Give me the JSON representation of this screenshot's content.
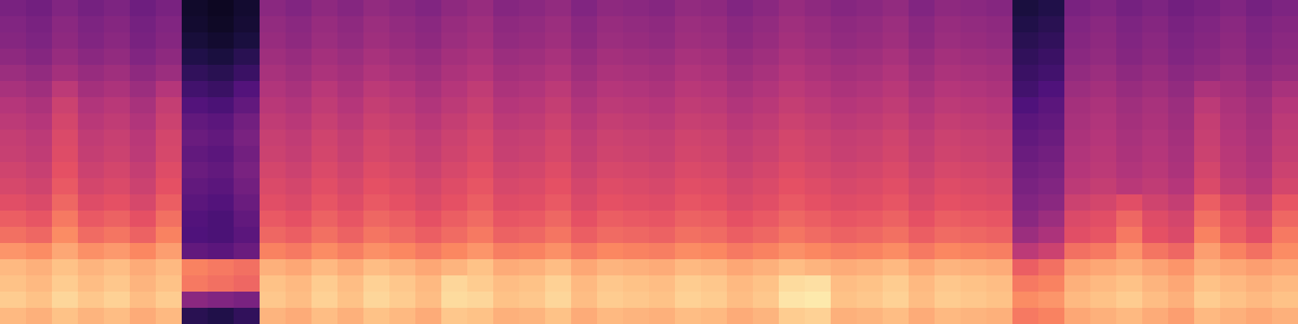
{
  "chart_data": {
    "type": "heatmap",
    "tick_labels": false,
    "zlim": [
      0,
      100
    ],
    "cells": [
      [
        36,
        34,
        38,
        35,
        37,
        33,
        36,
        8,
        6,
        9,
        40,
        38,
        41,
        39,
        42,
        40,
        38,
        41,
        43,
        39,
        40,
        42,
        38,
        41,
        40,
        39,
        42,
        41,
        38,
        40,
        43,
        41,
        39,
        40,
        42,
        38,
        41,
        40,
        39,
        12,
        14,
        36,
        38,
        35,
        37,
        34,
        36,
        38,
        35,
        37
      ],
      [
        38,
        36,
        40,
        37,
        39,
        35,
        38,
        9,
        7,
        10,
        42,
        40,
        43,
        41,
        44,
        42,
        40,
        43,
        45,
        41,
        42,
        44,
        40,
        43,
        42,
        41,
        44,
        43,
        40,
        42,
        45,
        43,
        41,
        42,
        44,
        40,
        43,
        42,
        41,
        14,
        16,
        38,
        40,
        37,
        39,
        36,
        38,
        40,
        37,
        39
      ],
      [
        39,
        37,
        41,
        38,
        40,
        36,
        39,
        11,
        9,
        12,
        43,
        41,
        44,
        42,
        45,
        43,
        41,
        44,
        46,
        42,
        43,
        45,
        41,
        44,
        43,
        42,
        45,
        44,
        41,
        43,
        46,
        44,
        42,
        43,
        45,
        41,
        44,
        43,
        42,
        16,
        18,
        39,
        41,
        38,
        40,
        37,
        39,
        41,
        38,
        40
      ],
      [
        41,
        39,
        43,
        40,
        42,
        38,
        41,
        14,
        12,
        16,
        45,
        43,
        46,
        44,
        47,
        45,
        43,
        46,
        48,
        44,
        45,
        47,
        43,
        46,
        45,
        44,
        47,
        46,
        43,
        45,
        48,
        46,
        44,
        45,
        47,
        43,
        46,
        45,
        44,
        18,
        20,
        40,
        42,
        39,
        41,
        38,
        40,
        42,
        39,
        41
      ],
      [
        44,
        42,
        46,
        43,
        45,
        41,
        44,
        18,
        16,
        20,
        47,
        45,
        48,
        46,
        49,
        47,
        45,
        48,
        50,
        46,
        47,
        49,
        45,
        48,
        47,
        46,
        49,
        48,
        45,
        47,
        50,
        48,
        46,
        47,
        49,
        45,
        48,
        47,
        46,
        20,
        22,
        42,
        44,
        41,
        43,
        40,
        42,
        44,
        41,
        43
      ],
      [
        47,
        45,
        52,
        46,
        48,
        44,
        50,
        22,
        20,
        26,
        49,
        47,
        51,
        48,
        52,
        50,
        47,
        50,
        53,
        48,
        49,
        52,
        47,
        50,
        49,
        48,
        51,
        50,
        47,
        49,
        52,
        50,
        48,
        49,
        51,
        47,
        50,
        49,
        48,
        22,
        25,
        44,
        46,
        43,
        45,
        42,
        48,
        46,
        43,
        47
      ],
      [
        50,
        48,
        56,
        49,
        51,
        47,
        54,
        26,
        24,
        30,
        51,
        49,
        53,
        50,
        54,
        52,
        49,
        52,
        55,
        50,
        51,
        54,
        49,
        52,
        51,
        50,
        53,
        52,
        49,
        51,
        54,
        52,
        50,
        51,
        53,
        49,
        52,
        51,
        50,
        25,
        28,
        46,
        48,
        45,
        47,
        44,
        52,
        48,
        45,
        50
      ],
      [
        52,
        50,
        58,
        51,
        53,
        49,
        56,
        30,
        28,
        34,
        53,
        51,
        55,
        52,
        56,
        54,
        51,
        54,
        57,
        52,
        53,
        56,
        51,
        54,
        53,
        52,
        55,
        54,
        51,
        53,
        56,
        54,
        52,
        53,
        55,
        51,
        54,
        53,
        52,
        28,
        30,
        47,
        49,
        46,
        48,
        45,
        54,
        49,
        46,
        52
      ],
      [
        54,
        52,
        60,
        53,
        55,
        51,
        58,
        32,
        30,
        36,
        55,
        53,
        57,
        54,
        58,
        56,
        53,
        56,
        59,
        54,
        55,
        58,
        53,
        56,
        55,
        54,
        57,
        56,
        53,
        55,
        58,
        56,
        54,
        55,
        57,
        53,
        56,
        55,
        54,
        30,
        32,
        48,
        50,
        47,
        49,
        46,
        55,
        50,
        47,
        53
      ],
      [
        55,
        53,
        61,
        54,
        56,
        52,
        59,
        30,
        28,
        34,
        56,
        54,
        58,
        55,
        59,
        57,
        54,
        57,
        60,
        55,
        56,
        59,
        54,
        57,
        56,
        55,
        58,
        57,
        54,
        56,
        59,
        57,
        55,
        56,
        58,
        54,
        57,
        56,
        55,
        32,
        34,
        49,
        51,
        48,
        50,
        47,
        56,
        51,
        48,
        54
      ],
      [
        57,
        55,
        63,
        56,
        58,
        54,
        61,
        32,
        30,
        36,
        58,
        56,
        60,
        57,
        61,
        59,
        56,
        59,
        62,
        57,
        58,
        61,
        56,
        59,
        58,
        57,
        60,
        59,
        56,
        58,
        61,
        59,
        57,
        58,
        60,
        56,
        59,
        58,
        57,
        34,
        36,
        50,
        52,
        49,
        51,
        48,
        58,
        52,
        49,
        56
      ],
      [
        59,
        57,
        65,
        58,
        60,
        56,
        63,
        30,
        28,
        34,
        60,
        58,
        62,
        59,
        63,
        61,
        58,
        61,
        64,
        59,
        60,
        63,
        58,
        61,
        60,
        59,
        62,
        61,
        58,
        60,
        63,
        61,
        59,
        60,
        62,
        58,
        61,
        60,
        59,
        36,
        38,
        52,
        54,
        51,
        53,
        50,
        60,
        54,
        51,
        58
      ],
      [
        62,
        60,
        68,
        61,
        63,
        59,
        66,
        28,
        26,
        32,
        62,
        60,
        64,
        61,
        65,
        63,
        60,
        63,
        66,
        61,
        62,
        65,
        60,
        63,
        62,
        61,
        64,
        63,
        60,
        62,
        65,
        63,
        61,
        62,
        64,
        60,
        63,
        62,
        61,
        38,
        40,
        56,
        58,
        62,
        57,
        54,
        66,
        60,
        55,
        64
      ],
      [
        66,
        64,
        72,
        65,
        67,
        63,
        70,
        26,
        24,
        30,
        65,
        63,
        67,
        64,
        68,
        66,
        63,
        66,
        69,
        64,
        65,
        68,
        63,
        66,
        65,
        64,
        67,
        66,
        63,
        65,
        68,
        66,
        64,
        65,
        67,
        63,
        66,
        65,
        64,
        40,
        44,
        60,
        62,
        68,
        61,
        58,
        70,
        64,
        59,
        68
      ],
      [
        70,
        68,
        76,
        69,
        71,
        67,
        74,
        25,
        24,
        28,
        68,
        66,
        70,
        67,
        71,
        69,
        66,
        69,
        72,
        67,
        68,
        71,
        66,
        69,
        68,
        67,
        70,
        69,
        66,
        68,
        71,
        69,
        67,
        68,
        70,
        66,
        69,
        68,
        67,
        44,
        48,
        62,
        64,
        72,
        63,
        60,
        74,
        66,
        62,
        72
      ],
      [
        78,
        76,
        82,
        77,
        79,
        75,
        80,
        30,
        28,
        32,
        74,
        72,
        76,
        73,
        77,
        75,
        72,
        75,
        78,
        73,
        74,
        77,
        72,
        75,
        74,
        73,
        76,
        75,
        72,
        74,
        77,
        75,
        73,
        74,
        76,
        72,
        75,
        74,
        73,
        52,
        56,
        70,
        72,
        78,
        71,
        68,
        80,
        74,
        70,
        76
      ],
      [
        86,
        84,
        88,
        85,
        87,
        83,
        86,
        74,
        72,
        70,
        84,
        82,
        86,
        83,
        87,
        85,
        82,
        85,
        88,
        83,
        84,
        87,
        82,
        85,
        84,
        83,
        86,
        85,
        82,
        84,
        87,
        85,
        83,
        84,
        86,
        82,
        85,
        84,
        83,
        66,
        70,
        80,
        82,
        84,
        81,
        78,
        84,
        82,
        80,
        82
      ],
      [
        88,
        86,
        90,
        87,
        89,
        85,
        88,
        72,
        70,
        68,
        88,
        86,
        90,
        87,
        91,
        89,
        86,
        92,
        90,
        87,
        88,
        91,
        86,
        89,
        88,
        87,
        90,
        89,
        86,
        88,
        93,
        94,
        87,
        88,
        90,
        86,
        89,
        88,
        87,
        72,
        74,
        84,
        86,
        88,
        85,
        82,
        88,
        86,
        84,
        86
      ],
      [
        90,
        88,
        92,
        89,
        91,
        87,
        90,
        40,
        38,
        36,
        89,
        87,
        91,
        88,
        92,
        90,
        87,
        93,
        92,
        88,
        89,
        92,
        87,
        90,
        89,
        88,
        91,
        90,
        87,
        89,
        95,
        96,
        88,
        89,
        91,
        87,
        90,
        89,
        88,
        76,
        78,
        86,
        88,
        90,
        87,
        84,
        90,
        88,
        86,
        88
      ],
      [
        86,
        84,
        88,
        85,
        87,
        83,
        86,
        16,
        14,
        18,
        85,
        83,
        87,
        84,
        88,
        86,
        83,
        89,
        88,
        84,
        85,
        88,
        83,
        86,
        85,
        84,
        87,
        86,
        83,
        85,
        90,
        91,
        84,
        85,
        87,
        83,
        86,
        85,
        84,
        72,
        74,
        82,
        84,
        86,
        83,
        80,
        86,
        84,
        82,
        84
      ]
    ]
  }
}
